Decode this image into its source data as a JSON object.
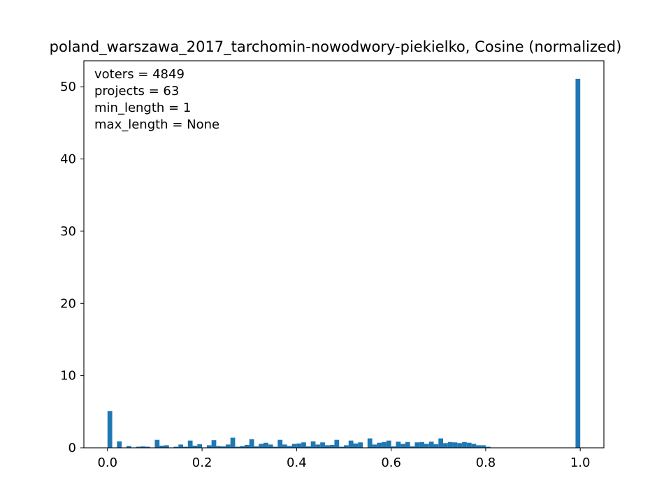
{
  "chart_data": {
    "type": "bar",
    "title": "poland_warszawa_2017_tarchomin-nowodwory-piekielko, Cosine (normalized)",
    "xlabel": "",
    "ylabel": "",
    "xlim": [
      -0.05,
      1.05
    ],
    "ylim": [
      0,
      53.6
    ],
    "xticks": [
      "0.0",
      "0.2",
      "0.4",
      "0.6",
      "0.8",
      "1.0"
    ],
    "yticks": [
      "0",
      "10",
      "20",
      "30",
      "40",
      "50"
    ],
    "grid": false,
    "bar_color": "#1f77b4",
    "annotations": [
      "voters = 4849",
      "projects = 63",
      "min_length = 1",
      "max_length = None"
    ],
    "bin_width": 0.01,
    "bins": [
      [
        0.0,
        5.1
      ],
      [
        0.02,
        0.9
      ],
      [
        0.04,
        0.25
      ],
      [
        0.06,
        0.15
      ],
      [
        0.07,
        0.2
      ],
      [
        0.08,
        0.15
      ],
      [
        0.1,
        1.1
      ],
      [
        0.11,
        0.3
      ],
      [
        0.12,
        0.35
      ],
      [
        0.14,
        0.15
      ],
      [
        0.15,
        0.45
      ],
      [
        0.16,
        0.15
      ],
      [
        0.17,
        1.0
      ],
      [
        0.18,
        0.3
      ],
      [
        0.19,
        0.5
      ],
      [
        0.21,
        0.35
      ],
      [
        0.22,
        1.05
      ],
      [
        0.23,
        0.25
      ],
      [
        0.24,
        0.2
      ],
      [
        0.25,
        0.45
      ],
      [
        0.26,
        1.4
      ],
      [
        0.27,
        0.15
      ],
      [
        0.28,
        0.25
      ],
      [
        0.29,
        0.4
      ],
      [
        0.3,
        1.2
      ],
      [
        0.31,
        0.2
      ],
      [
        0.32,
        0.55
      ],
      [
        0.33,
        0.7
      ],
      [
        0.34,
        0.45
      ],
      [
        0.35,
        0.15
      ],
      [
        0.36,
        1.1
      ],
      [
        0.37,
        0.45
      ],
      [
        0.38,
        0.25
      ],
      [
        0.39,
        0.55
      ],
      [
        0.4,
        0.6
      ],
      [
        0.41,
        0.75
      ],
      [
        0.42,
        0.2
      ],
      [
        0.43,
        0.9
      ],
      [
        0.44,
        0.45
      ],
      [
        0.45,
        0.75
      ],
      [
        0.46,
        0.35
      ],
      [
        0.47,
        0.4
      ],
      [
        0.48,
        1.1
      ],
      [
        0.49,
        0.15
      ],
      [
        0.5,
        0.35
      ],
      [
        0.51,
        1.0
      ],
      [
        0.52,
        0.6
      ],
      [
        0.53,
        0.75
      ],
      [
        0.55,
        1.3
      ],
      [
        0.56,
        0.45
      ],
      [
        0.57,
        0.7
      ],
      [
        0.58,
        0.8
      ],
      [
        0.59,
        1.0
      ],
      [
        0.6,
        0.2
      ],
      [
        0.61,
        0.85
      ],
      [
        0.62,
        0.55
      ],
      [
        0.63,
        0.8
      ],
      [
        0.64,
        0.2
      ],
      [
        0.65,
        0.75
      ],
      [
        0.66,
        0.8
      ],
      [
        0.67,
        0.55
      ],
      [
        0.68,
        0.85
      ],
      [
        0.69,
        0.5
      ],
      [
        0.7,
        1.3
      ],
      [
        0.71,
        0.65
      ],
      [
        0.72,
        0.8
      ],
      [
        0.73,
        0.75
      ],
      [
        0.74,
        0.65
      ],
      [
        0.75,
        0.8
      ],
      [
        0.76,
        0.7
      ],
      [
        0.77,
        0.55
      ],
      [
        0.78,
        0.35
      ],
      [
        0.79,
        0.35
      ],
      [
        0.8,
        0.15
      ],
      [
        0.99,
        51.1
      ]
    ]
  }
}
